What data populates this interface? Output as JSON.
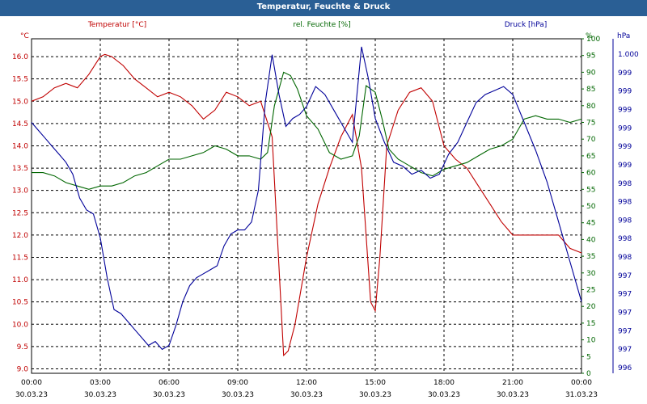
{
  "window": {
    "title": "Temperatur, Feuchte & Druck"
  },
  "colors": {
    "titlebar": "#2a5f95",
    "temperature": "#c00000",
    "humidity": "#006600",
    "pressure": "#000099",
    "grid": "#000000"
  },
  "chart_data": {
    "type": "line",
    "title": "Temperatur, Feuchte & Druck",
    "grid": true,
    "x": {
      "range": [
        "30.03.23 00:00",
        "31.03.23 00:00"
      ],
      "tick_labels": [
        {
          "time": "00:00",
          "date": "30.03.23"
        },
        {
          "time": "03:00",
          "date": "30.03.23"
        },
        {
          "time": "06:00",
          "date": "30.03.23"
        },
        {
          "time": "09:00",
          "date": "30.03.23"
        },
        {
          "time": "12:00",
          "date": "30.03.23"
        },
        {
          "time": "15:00",
          "date": "30.03.23"
        },
        {
          "time": "18:00",
          "date": "30.03.23"
        },
        {
          "time": "21:00",
          "date": "30.03.23"
        },
        {
          "time": "00:00",
          "date": "31.03.23"
        }
      ]
    },
    "axes": {
      "left": {
        "label": "Temperatur [°C]",
        "unit": "°C",
        "ylim": [
          8.9,
          16.4
        ],
        "ticks": [
          "16.0",
          "15.5",
          "15.0",
          "14.5",
          "14.0",
          "13.5",
          "13.0",
          "12.5",
          "12.0",
          "11.5",
          "11.0",
          "10.5",
          "10.0",
          "9.5",
          "9.0"
        ]
      },
      "right1": {
        "label": "rel. Feuchte [%]",
        "unit": "%",
        "ylim": [
          0,
          100
        ],
        "ticks": [
          "100",
          "95",
          "90",
          "85",
          "80",
          "75",
          "70",
          "65",
          "60",
          "55",
          "50",
          "45",
          "40",
          "35",
          "30",
          "25",
          "20",
          "15",
          "10",
          "5",
          "0"
        ]
      },
      "right2": {
        "label": "Druck [hPa]",
        "unit": "hPa",
        "ylim": [
          996,
          1000.2
        ],
        "ticks": [
          "1.000",
          "999",
          "999",
          "999",
          "999",
          "999",
          "999",
          "998",
          "998",
          "998",
          "998",
          "998",
          "997",
          "997",
          "997",
          "997",
          "997",
          "996"
        ]
      }
    },
    "series": [
      {
        "name": "Temperatur [°C]",
        "axis": "left",
        "x_hours": [
          0,
          0.5,
          1,
          1.5,
          2,
          2.5,
          3,
          3.2,
          3.5,
          4,
          4.5,
          5,
          5.5,
          6,
          6.5,
          7,
          7.5,
          8,
          8.5,
          9,
          9.5,
          10,
          10.5,
          11,
          11.2,
          11.5,
          12,
          12.5,
          13,
          13.5,
          14,
          14.4,
          14.8,
          15,
          15.2,
          15.5,
          16,
          16.5,
          17,
          17.5,
          18,
          18.5,
          19,
          19.5,
          20,
          20.5,
          21,
          21.5,
          22,
          22.5,
          23,
          23.5,
          24
        ],
        "values": [
          15.0,
          15.1,
          15.3,
          15.4,
          15.3,
          15.6,
          16.0,
          16.05,
          16.0,
          15.8,
          15.5,
          15.3,
          15.1,
          15.2,
          15.1,
          14.9,
          14.6,
          14.8,
          15.2,
          15.1,
          14.9,
          15.0,
          14.2,
          9.3,
          9.4,
          10.0,
          11.5,
          12.7,
          13.5,
          14.2,
          14.7,
          13.5,
          10.5,
          10.3,
          11.5,
          14.0,
          14.8,
          15.2,
          15.3,
          15.0,
          14.0,
          13.7,
          13.5,
          13.1,
          12.7,
          12.3,
          12.0,
          12.0,
          12.0,
          12.0,
          12.0,
          11.7,
          11.6
        ]
      },
      {
        "name": "rel. Feuchte [%]",
        "axis": "right1",
        "x_hours": [
          0,
          0.5,
          1,
          1.5,
          2,
          2.5,
          3,
          3.5,
          4,
          4.5,
          5,
          5.5,
          6,
          6.5,
          7,
          7.5,
          8,
          8.5,
          9,
          9.5,
          10,
          10.3,
          10.6,
          11,
          11.3,
          11.6,
          12,
          12.5,
          13,
          13.5,
          14,
          14.3,
          14.6,
          15,
          15.3,
          15.6,
          16,
          16.5,
          17,
          17.5,
          18,
          18.5,
          19,
          19.5,
          20,
          20.5,
          21,
          21.5,
          22,
          22.5,
          23,
          23.5,
          24
        ],
        "values": [
          60,
          60,
          59,
          57,
          56,
          55,
          56,
          56,
          57,
          59,
          60,
          62,
          64,
          64,
          65,
          66,
          68,
          67,
          65,
          65,
          64,
          66,
          80,
          90,
          89,
          85,
          77,
          73,
          66,
          64,
          65,
          71,
          86,
          84,
          76,
          67,
          64,
          62,
          60,
          59,
          61,
          62,
          63,
          65,
          67,
          68,
          70,
          76,
          77,
          76,
          76,
          75,
          76
        ]
      },
      {
        "name": "Druck [hPa]",
        "axis": "right2",
        "x_hours": [
          0,
          0.3,
          0.6,
          0.9,
          1.2,
          1.5,
          1.8,
          2.1,
          2.4,
          2.7,
          3,
          3.3,
          3.6,
          3.9,
          4.2,
          4.5,
          4.8,
          5.1,
          5.4,
          5.7,
          6,
          6.3,
          6.6,
          6.9,
          7.2,
          7.5,
          7.8,
          8.1,
          8.4,
          8.7,
          9,
          9.3,
          9.6,
          9.9,
          10.2,
          10.5,
          10.8,
          11.1,
          11.4,
          11.7,
          12,
          12.4,
          12.8,
          13.2,
          13.6,
          14,
          14.4,
          14.7,
          15,
          15.4,
          15.8,
          16.2,
          16.6,
          17,
          17.4,
          17.8,
          18.2,
          18.6,
          19,
          19.4,
          19.8,
          20.2,
          20.6,
          21,
          21.5,
          22,
          22.5,
          23,
          23.5,
          24
        ],
        "values": [
          999.15,
          999.05,
          998.95,
          998.85,
          998.75,
          998.65,
          998.5,
          998.2,
          998.05,
          998.0,
          997.7,
          997.2,
          996.8,
          996.75,
          996.65,
          996.55,
          996.45,
          996.35,
          996.4,
          996.3,
          996.35,
          996.6,
          996.9,
          997.1,
          997.2,
          997.25,
          997.3,
          997.35,
          997.6,
          997.75,
          997.8,
          997.8,
          997.9,
          998.3,
          999.4,
          1000.0,
          999.5,
          999.1,
          999.2,
          999.25,
          999.35,
          999.6,
          999.5,
          999.3,
          999.1,
          998.9,
          1000.1,
          999.7,
          999.2,
          998.9,
          998.65,
          998.6,
          998.5,
          998.55,
          998.45,
          998.5,
          998.75,
          998.9,
          999.15,
          999.4,
          999.5,
          999.55,
          999.6,
          999.5,
          999.15,
          998.8,
          998.4,
          997.9,
          997.4,
          996.9
        ]
      }
    ]
  }
}
